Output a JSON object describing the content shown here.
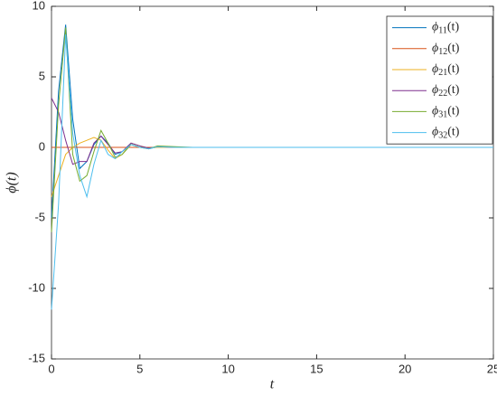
{
  "chart_data": {
    "type": "line",
    "xlabel": "t",
    "ylabel": "ϕ(t)",
    "x": [
      0,
      0.4,
      0.8,
      1.2,
      1.6,
      2.0,
      2.4,
      2.8,
      3.2,
      3.6,
      4.0,
      4.5,
      5,
      5.5,
      6,
      7,
      8,
      10,
      25
    ],
    "series": [
      {
        "name": "ϕ11(t)",
        "color": "#0072BD",
        "values": [
          -5,
          4,
          8.7,
          2,
          -1.5,
          -1,
          0.2,
          0.8,
          0.3,
          -0.5,
          -0.3,
          0.3,
          0.1,
          -0.1,
          0.05,
          0,
          0,
          0,
          0
        ]
      },
      {
        "name": "ϕ12(t)",
        "color": "#D95319",
        "values": [
          0,
          0,
          0,
          0,
          0,
          0,
          0,
          0,
          0,
          0,
          0,
          0,
          0,
          0,
          0,
          0,
          0,
          0,
          0
        ]
      },
      {
        "name": "ϕ21(t)",
        "color": "#EDB120",
        "values": [
          -3.5,
          -2,
          -0.5,
          0,
          0.3,
          0.5,
          0.7,
          0.5,
          -0.2,
          -0.8,
          -0.5,
          0.3,
          0.1,
          -0.05,
          0,
          0,
          0,
          0,
          0
        ]
      },
      {
        "name": "ϕ22(t)",
        "color": "#7E2F8E",
        "values": [
          3.5,
          2.5,
          0.5,
          -1.2,
          -1,
          -1,
          0.3,
          0.8,
          0.2,
          -0.4,
          -0.3,
          0.3,
          0.1,
          -0.05,
          0.05,
          0,
          0,
          0,
          0
        ]
      },
      {
        "name": "ϕ31(t)",
        "color": "#77AC30",
        "values": [
          -6,
          3,
          8.5,
          -0.5,
          -2.4,
          -2,
          -0.3,
          1.2,
          0.3,
          -0.7,
          -0.5,
          0.2,
          0,
          -0.1,
          0.1,
          0.05,
          0,
          0,
          0
        ]
      },
      {
        "name": "ϕ32(t)",
        "color": "#4DBEEE",
        "values": [
          -11.5,
          -4,
          8,
          1,
          -2,
          -3.5,
          -1.2,
          0.5,
          -0.5,
          -0.8,
          -0.3,
          0.2,
          0,
          -0.1,
          0.05,
          0,
          0,
          0,
          0
        ]
      }
    ],
    "xlim": [
      0,
      25
    ],
    "xticks": [
      0,
      5,
      10,
      15,
      20,
      25
    ],
    "ylim": [
      -15,
      10
    ],
    "yticks": [
      -15,
      -10,
      -5,
      0,
      5,
      10
    ],
    "legend": "upper right"
  }
}
